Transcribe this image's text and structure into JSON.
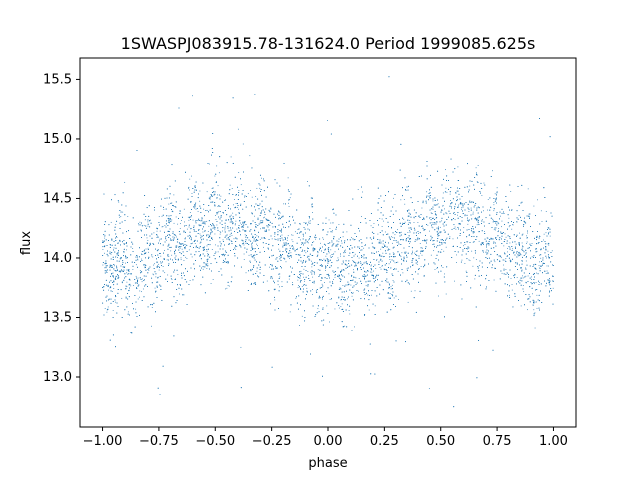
{
  "chart_data": {
    "type": "scatter",
    "title": "1SWASPJ083915.78-131624.0 Period 1999085.625s",
    "xlabel": "phase",
    "ylabel": "flux",
    "xlim": [
      -1.1,
      1.1
    ],
    "ylim": [
      12.58,
      15.68
    ],
    "x_ticks": [
      -1.0,
      -0.75,
      -0.5,
      -0.25,
      0.0,
      0.25,
      0.5,
      0.75,
      1.0
    ],
    "x_tick_labels": [
      "−1.00",
      "−0.75",
      "−0.50",
      "−0.25",
      "0.00",
      "0.25",
      "0.50",
      "0.75",
      "1.00"
    ],
    "y_ticks": [
      13.0,
      13.5,
      14.0,
      14.5,
      15.0,
      15.5
    ],
    "y_tick_labels": [
      "13.0",
      "13.5",
      "14.0",
      "14.5",
      "15.0",
      "15.5"
    ],
    "grid": false,
    "marker_color": "#1f77b4",
    "series": [
      {
        "phase_range": [
          -1.0,
          1.0
        ],
        "baseline_flux": 14.1,
        "modulation_amplitude": 0.18,
        "scatter_sigma": 0.22,
        "point_count": 9000,
        "outlier_range": [
          12.7,
          15.55
        ]
      }
    ]
  }
}
